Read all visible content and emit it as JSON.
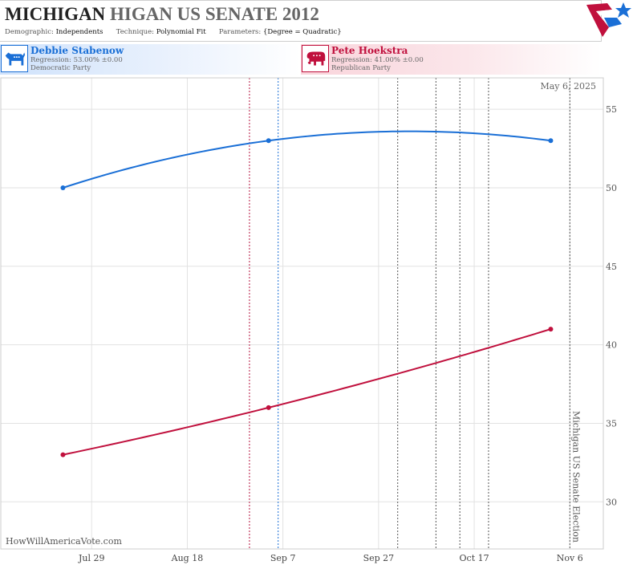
{
  "header": {
    "title_state": "MICHIGAN",
    "title_race": "HIGAN US SENATE 2012",
    "demographic_label": "Demographic:",
    "demographic_value": "Independents",
    "technique_label": "Technique:",
    "technique_value": "Polynomial Fit",
    "parameters_label": "Parameters:",
    "parameters_value": "{Degree = Quadratic}"
  },
  "candidates": {
    "dem": {
      "name": "Debbie Stabenow",
      "regression": "Regression: 53.00% ±0.00",
      "party": "Democratic Party",
      "color": "#1a6fd6"
    },
    "rep": {
      "name": "Pete Hoekstra",
      "regression": "Regression: 41.00% ±0.00",
      "party": "Republican Party",
      "color": "#c0103d"
    }
  },
  "footer": {
    "site": "HowWillAmericaVote.com"
  },
  "chart_data": {
    "type": "line",
    "date_label": "May 6, 2025",
    "event_label": "Michigan US Senate Election",
    "event_date": "2012-11-06",
    "x_ticks": [
      {
        "label": "Jul 29",
        "date": "2012-07-29"
      },
      {
        "label": "Aug 18",
        "date": "2012-08-18"
      },
      {
        "label": "Sep 7",
        "date": "2012-09-07"
      },
      {
        "label": "Sep 27",
        "date": "2012-09-27"
      },
      {
        "label": "Oct 17",
        "date": "2012-10-17"
      },
      {
        "label": "Nov 6",
        "date": "2012-11-06"
      }
    ],
    "xlim": [
      "2012-07-10",
      "2012-11-13"
    ],
    "ylim": [
      27,
      57
    ],
    "y_ticks": [
      30,
      35,
      40,
      45,
      50,
      55
    ],
    "grid": true,
    "marker_lines": [
      {
        "date": "2012-08-31",
        "color": "#b5123f"
      },
      {
        "date": "2012-09-06",
        "color": "#1a6fd6"
      },
      {
        "date": "2012-10-01",
        "color": "#555555"
      },
      {
        "date": "2012-10-09",
        "color": "#555555"
      },
      {
        "date": "2012-10-14",
        "color": "#555555"
      },
      {
        "date": "2012-10-20",
        "color": "#555555"
      }
    ],
    "series": [
      {
        "name": "Debbie Stabenow",
        "color": "#1a6fd6",
        "points": [
          {
            "date": "2012-07-23",
            "value": 50.0
          },
          {
            "date": "2012-09-04",
            "value": 53.0
          },
          {
            "date": "2012-11-02",
            "value": 53.0
          }
        ],
        "fit_peak": {
          "date": "2012-10-05",
          "value": 53.75
        }
      },
      {
        "name": "Pete Hoekstra",
        "color": "#c0103d",
        "points": [
          {
            "date": "2012-07-23",
            "value": 33.0
          },
          {
            "date": "2012-09-04",
            "value": 36.0
          },
          {
            "date": "2012-11-02",
            "value": 41.0
          }
        ]
      }
    ]
  }
}
